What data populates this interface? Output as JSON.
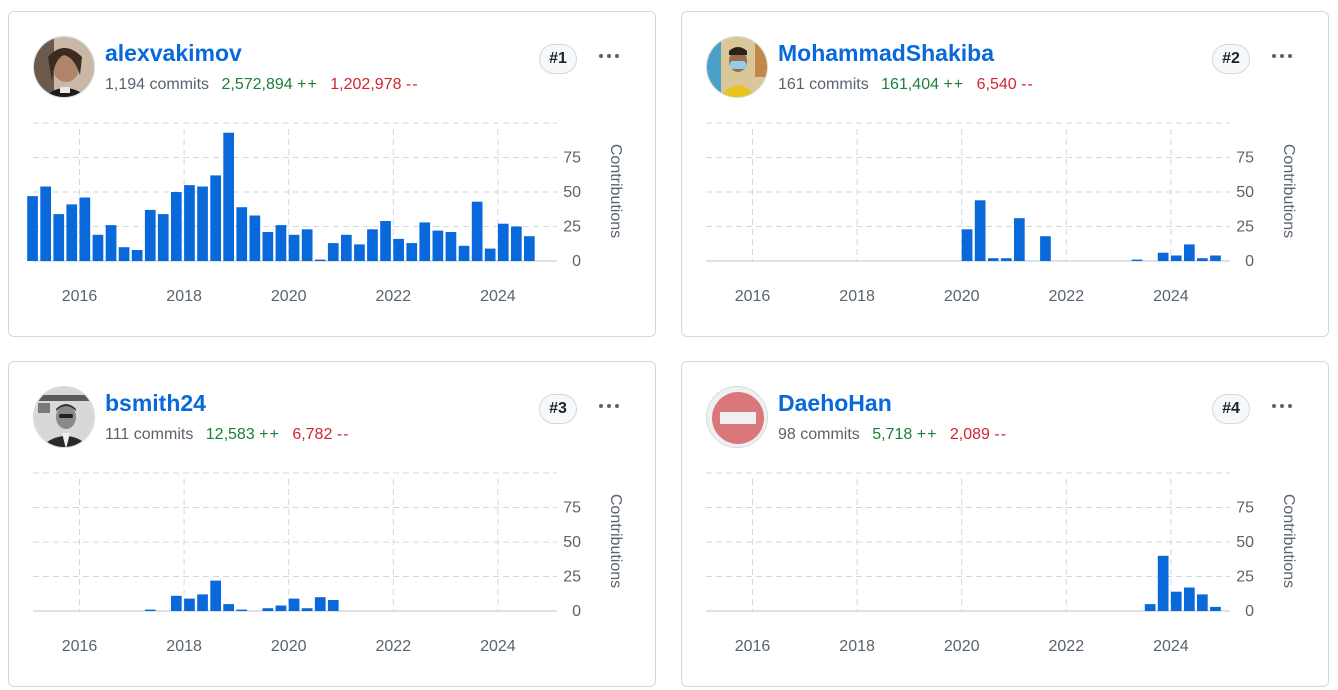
{
  "cards": [
    {
      "rank": "#1",
      "username": "alexvakimov",
      "commits": "1,194 commits",
      "additions": "2,572,894",
      "add_suffix": "++",
      "deletions": "1,202,978",
      "del_suffix": "--",
      "avatar": "man-with-long-hair-photo",
      "chart_data": {
        "type": "bar",
        "ylabel": "Contributions",
        "x_ticks": [
          "2016",
          "2018",
          "2020",
          "2022",
          "2024"
        ],
        "y_ticks": [
          "0",
          "25",
          "50",
          "75"
        ],
        "ylim": [
          0,
          100
        ],
        "x_start": "2015-01",
        "bar_interval_months": 3,
        "values": [
          47,
          54,
          34,
          41,
          46,
          19,
          26,
          10,
          8,
          37,
          34,
          50,
          55,
          54,
          62,
          93,
          39,
          33,
          21,
          26,
          19,
          23,
          1,
          13,
          19,
          12,
          23,
          29,
          16,
          13,
          28,
          22,
          21,
          11,
          43,
          9,
          27,
          25,
          18
        ]
      }
    },
    {
      "rank": "#2",
      "username": "MohammadShakiba",
      "commits": "161 commits",
      "additions": "161,404",
      "add_suffix": "++",
      "deletions": "6,540",
      "del_suffix": "--",
      "avatar": "person-with-mask-photo",
      "chart_data": {
        "type": "bar",
        "ylabel": "Contributions",
        "x_ticks": [
          "2016",
          "2018",
          "2020",
          "2022",
          "2024"
        ],
        "y_ticks": [
          "0",
          "25",
          "50",
          "75"
        ],
        "ylim": [
          0,
          100
        ],
        "x_start": "2015-01",
        "bar_interval_months": 3,
        "values": [
          0,
          0,
          0,
          0,
          0,
          0,
          0,
          0,
          0,
          0,
          0,
          0,
          0,
          0,
          0,
          0,
          0,
          0,
          0,
          0,
          23,
          44,
          2,
          2,
          31,
          0,
          18,
          0,
          0,
          0,
          0,
          0,
          0,
          1,
          0,
          6,
          4,
          12,
          2,
          4
        ]
      }
    },
    {
      "rank": "#3",
      "username": "bsmith24",
      "commits": "111 commits",
      "additions": "12,583",
      "add_suffix": "++",
      "deletions": "6,782",
      "del_suffix": "--",
      "avatar": "man-in-suit-photo",
      "chart_data": {
        "type": "bar",
        "ylabel": "Contributions",
        "x_ticks": [
          "2016",
          "2018",
          "2020",
          "2022",
          "2024"
        ],
        "y_ticks": [
          "0",
          "25",
          "50",
          "75"
        ],
        "ylim": [
          0,
          100
        ],
        "x_start": "2015-01",
        "bar_interval_months": 3,
        "values": [
          0,
          0,
          0,
          0,
          0,
          0,
          0,
          0,
          0,
          1,
          0,
          11,
          9,
          12,
          22,
          5,
          1,
          0,
          2,
          4,
          9,
          2,
          10,
          8
        ]
      }
    },
    {
      "rank": "#4",
      "username": "DaehoHan",
      "commits": "98 commits",
      "additions": "5,718",
      "add_suffix": "++",
      "deletions": "2,089",
      "del_suffix": "--",
      "avatar": "default-identicon",
      "chart_data": {
        "type": "bar",
        "ylabel": "Contributions",
        "x_ticks": [
          "2016",
          "2018",
          "2020",
          "2022",
          "2024"
        ],
        "y_ticks": [
          "0",
          "25",
          "50",
          "75"
        ],
        "ylim": [
          0,
          100
        ],
        "x_start": "2015-01",
        "bar_interval_months": 3,
        "values": [
          0,
          0,
          0,
          0,
          0,
          0,
          0,
          0,
          0,
          0,
          0,
          0,
          0,
          0,
          0,
          0,
          0,
          0,
          0,
          0,
          0,
          0,
          0,
          0,
          0,
          0,
          0,
          0,
          0,
          0,
          0,
          0,
          0,
          0,
          5,
          40,
          14,
          17,
          12,
          3
        ]
      }
    }
  ],
  "colors": {
    "bar": "#0969da",
    "link": "#0969da",
    "additions": "#1a7f37",
    "deletions": "#d1242f",
    "muted": "#59636e",
    "grid": "#d1d9e0"
  }
}
